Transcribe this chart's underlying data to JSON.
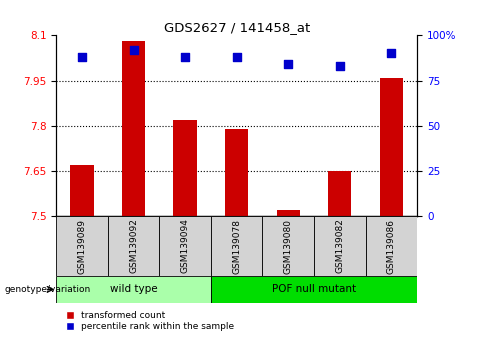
{
  "title": "GDS2627 / 141458_at",
  "samples": [
    "GSM139089",
    "GSM139092",
    "GSM139094",
    "GSM139078",
    "GSM139080",
    "GSM139082",
    "GSM139086"
  ],
  "bar_values": [
    7.67,
    8.08,
    7.82,
    7.79,
    7.52,
    7.65,
    7.96
  ],
  "percentile_values": [
    88,
    92,
    88,
    88,
    84,
    83,
    90
  ],
  "ylim_left": [
    7.5,
    8.1
  ],
  "ylim_right": [
    0,
    100
  ],
  "yticks_left": [
    7.5,
    7.65,
    7.8,
    7.95,
    8.1
  ],
  "ytick_labels_left": [
    "7.5",
    "7.65",
    "7.8",
    "7.95",
    "8.1"
  ],
  "yticks_right": [
    0,
    25,
    50,
    75,
    100
  ],
  "ytick_labels_right": [
    "0",
    "25",
    "50",
    "75",
    "100%"
  ],
  "grid_lines": [
    7.65,
    7.8,
    7.95
  ],
  "bar_color": "#cc0000",
  "marker_color": "#0000cc",
  "bar_bottom": 7.5,
  "groups": [
    {
      "label": "wild type",
      "indices": [
        0,
        1,
        2
      ],
      "color": "#aaffaa"
    },
    {
      "label": "POF null mutant",
      "indices": [
        3,
        4,
        5,
        6
      ],
      "color": "#00dd00"
    }
  ],
  "group_label_prefix": "genotype/variation",
  "legend_label_bar": "transformed count",
  "legend_label_marker": "percentile rank within the sample",
  "sample_box_color": "#d3d3d3",
  "plot_bg": "#ffffff"
}
